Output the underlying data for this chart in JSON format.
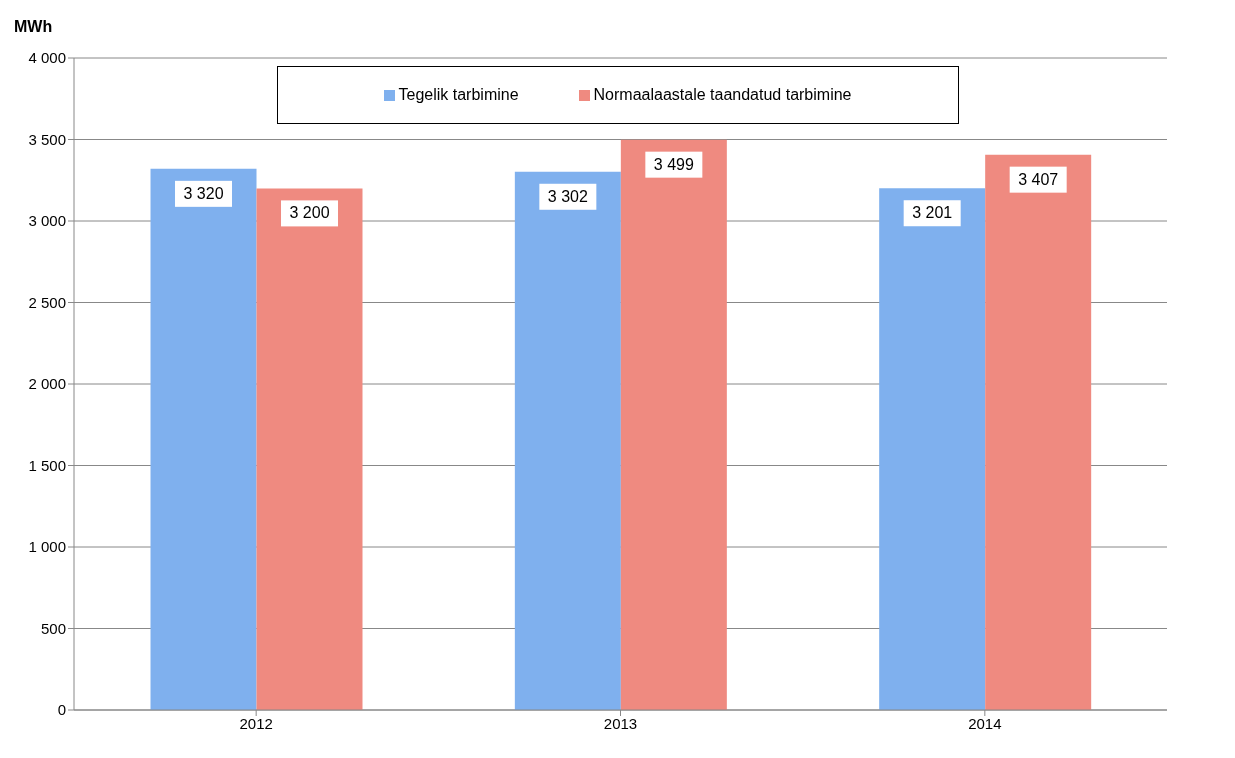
{
  "chart_data": {
    "type": "bar",
    "ylabel": "MWh",
    "categories": [
      "2012",
      "2013",
      "2014"
    ],
    "series": [
      {
        "name": "Tegelik tarbimine",
        "color": "#7fb0ee",
        "values": [
          3320,
          3302,
          3201
        ],
        "value_labels": [
          "3 320",
          "3 302",
          "3 201"
        ]
      },
      {
        "name": "Normaalaastale taandatud tarbimine",
        "color": "#ef8a80",
        "values": [
          3200,
          3499,
          3407
        ],
        "value_labels": [
          "3 200",
          "3 499",
          "3 407"
        ]
      }
    ],
    "ylim": [
      0,
      4000
    ],
    "yticks": [
      0,
      {
        "value": 500,
        "label": "500"
      },
      {
        "value": 1000,
        "label": "1 000"
      },
      {
        "value": 1500,
        "label": "1 500"
      },
      {
        "value": 2000,
        "label": "2 000"
      },
      {
        "value": 2500,
        "label": "2 500"
      },
      {
        "value": 3000,
        "label": "3 000"
      },
      {
        "value": 3500,
        "label": "3 500"
      },
      {
        "value": 4000,
        "label": "4 000"
      }
    ],
    "grid": "y",
    "legend": "top"
  }
}
